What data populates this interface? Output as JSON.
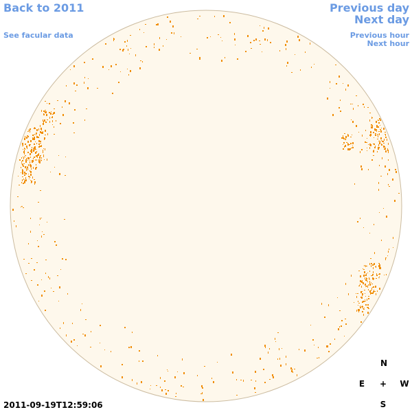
{
  "nav": {
    "back": "Back to 2011",
    "facular": "See facular data",
    "previous_day": "Previous day",
    "next_day": "Next day",
    "previous_hour": "Previous hour",
    "next_hour": "Next hour"
  },
  "timestamp": "2011-09-19T12:59:06",
  "compass": {
    "north": "N",
    "east": "E",
    "center": "+",
    "west": "W",
    "south": "S"
  }
}
